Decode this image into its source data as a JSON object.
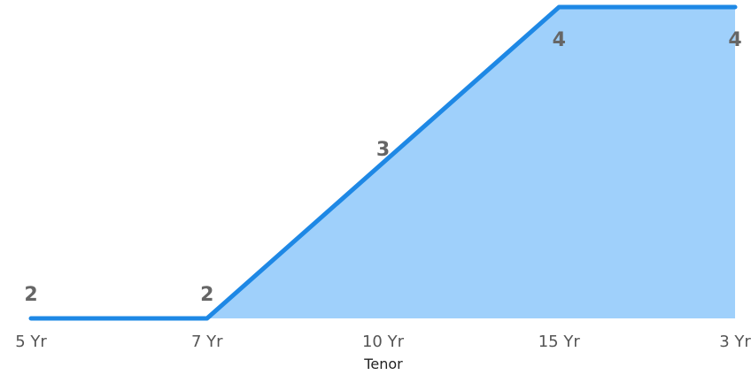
{
  "chart_data": {
    "type": "area",
    "categories": [
      "5 Yr",
      "7 Yr",
      "10 Yr",
      "15 Yr",
      "3 Yr"
    ],
    "series": [
      {
        "values": [
          2,
          2,
          3,
          4,
          4
        ]
      }
    ],
    "xlabel": "Tenor",
    "ylabel": "",
    "ylim": [
      2,
      4
    ],
    "grid": false,
    "legend": "none",
    "colors": {
      "line": "#1e88e5",
      "fill": "#9fd0fb",
      "tick_text": "#555555",
      "label_text": "#666666",
      "axis_title": "#222222"
    }
  }
}
